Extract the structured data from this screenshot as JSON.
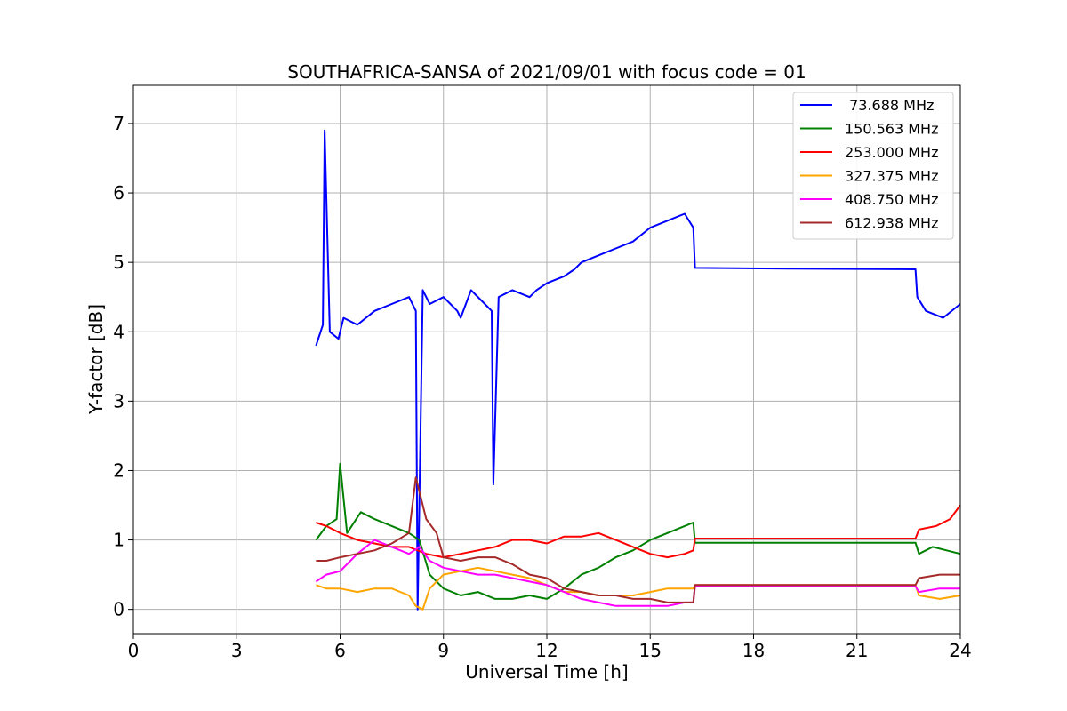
{
  "chart_data": {
    "type": "line",
    "title": "SOUTHAFRICA-SANSA of 2021/09/01 with focus code = 01",
    "xlabel": "Universal Time [h]",
    "ylabel": "Y-factor [dB]",
    "xlim": [
      0,
      24
    ],
    "ylim": [
      -0.35,
      7.55
    ],
    "xticks": [
      0,
      3,
      6,
      9,
      12,
      15,
      18,
      21,
      24
    ],
    "yticks": [
      0,
      1,
      2,
      3,
      4,
      5,
      6,
      7
    ],
    "grid": true,
    "legend_position": "top-right",
    "series": [
      {
        "name": " 73.688 MHz",
        "color": "#0000ff",
        "x": [
          5.3,
          5.5,
          5.55,
          5.7,
          5.95,
          6.1,
          6.5,
          7.0,
          7.5,
          8.0,
          8.2,
          8.25,
          8.4,
          8.6,
          9.0,
          9.4,
          9.5,
          9.8,
          10.2,
          10.4,
          10.45,
          10.6,
          11.0,
          11.5,
          11.7,
          12.0,
          12.5,
          12.8,
          13.0,
          13.5,
          14.0,
          14.5,
          15.0,
          15.5,
          16.0,
          16.25,
          16.3,
          19.0,
          22.7,
          22.75,
          23.0,
          23.5,
          24.0
        ],
        "y": [
          3.8,
          4.1,
          6.9,
          4.0,
          3.9,
          4.2,
          4.1,
          4.3,
          4.4,
          4.5,
          4.3,
          0.0,
          4.6,
          4.4,
          4.5,
          4.3,
          4.2,
          4.6,
          4.4,
          4.3,
          1.8,
          4.5,
          4.6,
          4.5,
          4.6,
          4.7,
          4.8,
          4.9,
          5.0,
          5.1,
          5.2,
          5.3,
          5.5,
          5.6,
          5.7,
          5.5,
          4.92,
          4.91,
          4.9,
          4.5,
          4.3,
          4.2,
          4.4
        ]
      },
      {
        "name": "150.563 MHz",
        "color": "#008000",
        "x": [
          5.3,
          5.6,
          5.9,
          6.0,
          6.2,
          6.6,
          7.0,
          7.5,
          8.0,
          8.3,
          8.6,
          9.0,
          9.5,
          10.0,
          10.5,
          11.0,
          11.5,
          12.0,
          12.5,
          13.0,
          13.5,
          14.0,
          14.5,
          15.0,
          15.5,
          16.0,
          16.25,
          16.3,
          22.7,
          22.8,
          23.2,
          23.6,
          24.0
        ],
        "y": [
          1.0,
          1.2,
          1.3,
          2.1,
          1.1,
          1.4,
          1.3,
          1.2,
          1.1,
          1.0,
          0.5,
          0.3,
          0.2,
          0.25,
          0.15,
          0.15,
          0.2,
          0.15,
          0.3,
          0.5,
          0.6,
          0.75,
          0.85,
          1.0,
          1.1,
          1.2,
          1.25,
          0.96,
          0.96,
          0.8,
          0.9,
          0.85,
          0.8
        ]
      },
      {
        "name": "253.000 MHz",
        "color": "#ff0000",
        "x": [
          5.3,
          5.6,
          6.0,
          6.5,
          7.0,
          7.5,
          8.0,
          8.5,
          9.0,
          9.5,
          10.0,
          10.5,
          11.0,
          11.5,
          12.0,
          12.5,
          13.0,
          13.5,
          14.0,
          14.5,
          15.0,
          15.5,
          16.0,
          16.25,
          16.3,
          22.7,
          22.8,
          23.3,
          23.7,
          24.0
        ],
        "y": [
          1.25,
          1.2,
          1.1,
          1.0,
          0.95,
          0.9,
          0.9,
          0.8,
          0.75,
          0.8,
          0.85,
          0.9,
          1.0,
          1.0,
          0.95,
          1.05,
          1.05,
          1.1,
          1.0,
          0.9,
          0.8,
          0.75,
          0.8,
          0.85,
          1.02,
          1.02,
          1.15,
          1.2,
          1.3,
          1.5
        ]
      },
      {
        "name": "327.375 MHz",
        "color": "#ffa500",
        "x": [
          5.3,
          5.6,
          6.0,
          6.5,
          7.0,
          7.5,
          8.0,
          8.2,
          8.4,
          8.6,
          9.0,
          9.5,
          10.0,
          10.5,
          11.0,
          11.5,
          12.0,
          12.5,
          13.0,
          13.5,
          14.0,
          14.5,
          15.0,
          15.5,
          16.0,
          16.25,
          16.3,
          22.7,
          22.8,
          23.4,
          24.0
        ],
        "y": [
          0.35,
          0.3,
          0.3,
          0.25,
          0.3,
          0.3,
          0.2,
          0.05,
          0.0,
          0.3,
          0.5,
          0.55,
          0.6,
          0.55,
          0.5,
          0.45,
          0.35,
          0.25,
          0.25,
          0.2,
          0.2,
          0.2,
          0.25,
          0.3,
          0.3,
          0.3,
          0.35,
          0.35,
          0.2,
          0.15,
          0.2
        ]
      },
      {
        "name": "408.750 MHz",
        "color": "#ff00ff",
        "x": [
          5.3,
          5.6,
          6.0,
          6.5,
          7.0,
          7.5,
          8.0,
          8.3,
          8.6,
          9.0,
          9.5,
          10.0,
          10.5,
          11.0,
          11.5,
          12.0,
          12.5,
          13.0,
          13.5,
          14.0,
          14.5,
          15.0,
          15.5,
          16.0,
          16.25,
          16.3,
          22.7,
          22.8,
          23.4,
          24.0
        ],
        "y": [
          0.4,
          0.5,
          0.55,
          0.8,
          1.0,
          0.9,
          0.8,
          0.9,
          0.7,
          0.6,
          0.55,
          0.5,
          0.5,
          0.45,
          0.4,
          0.35,
          0.25,
          0.15,
          0.1,
          0.05,
          0.05,
          0.05,
          0.05,
          0.1,
          0.1,
          0.33,
          0.33,
          0.25,
          0.3,
          0.3
        ]
      },
      {
        "name": "612.938 MHz",
        "color": "#a52a2a",
        "x": [
          5.3,
          5.6,
          6.0,
          6.5,
          7.0,
          7.5,
          8.0,
          8.2,
          8.5,
          8.8,
          9.0,
          9.5,
          10.0,
          10.5,
          11.0,
          11.5,
          12.0,
          12.5,
          13.0,
          13.5,
          14.0,
          14.5,
          15.0,
          15.5,
          16.0,
          16.25,
          16.3,
          22.7,
          22.8,
          23.4,
          24.0
        ],
        "y": [
          0.7,
          0.7,
          0.75,
          0.8,
          0.85,
          0.95,
          1.1,
          1.9,
          1.3,
          1.1,
          0.75,
          0.7,
          0.75,
          0.75,
          0.65,
          0.5,
          0.45,
          0.3,
          0.25,
          0.2,
          0.2,
          0.15,
          0.15,
          0.1,
          0.1,
          0.1,
          0.35,
          0.35,
          0.45,
          0.5,
          0.5
        ]
      }
    ]
  }
}
